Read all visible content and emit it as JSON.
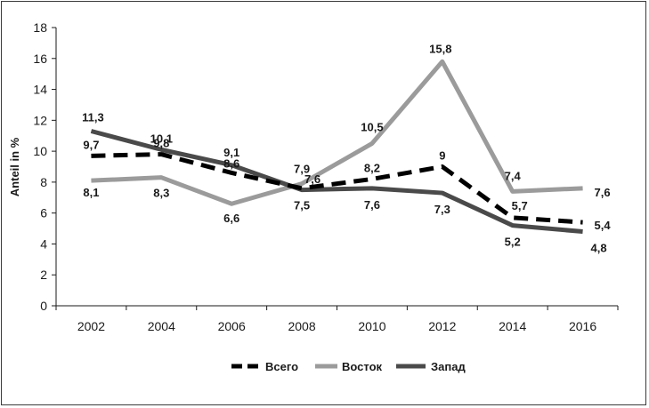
{
  "chart_data": {
    "type": "line",
    "title": "",
    "xlabel": "",
    "ylabel": "Anteil in %",
    "x": [
      "2002",
      "2004",
      "2006",
      "2008",
      "2010",
      "2012",
      "2014",
      "2016"
    ],
    "ylim": [
      0,
      18
    ],
    "yticks": [
      "0",
      "2",
      "4",
      "6",
      "8",
      "10",
      "12",
      "14",
      "16",
      "18"
    ],
    "grid": false,
    "legend_position": "bottom",
    "series": [
      {
        "name": "Всего",
        "values": [
          9.7,
          9.8,
          8.6,
          7.6,
          8.2,
          9,
          5.7,
          5.4
        ],
        "labels": [
          "9,7",
          "9,8",
          "8,6",
          "7,6",
          "8,2",
          "9",
          "5,7",
          "5,4"
        ],
        "color": "#000000",
        "style": "dashed"
      },
      {
        "name": "Восток",
        "values": [
          8.1,
          8.3,
          6.6,
          7.9,
          10.5,
          15.8,
          7.4,
          7.6
        ],
        "labels": [
          "8,1",
          "8,3",
          "6,6",
          "7,9",
          "10,5",
          "15,8",
          "7,4",
          "7,6"
        ],
        "color": "#9b9b9b",
        "style": "solid"
      },
      {
        "name": "Запад",
        "values": [
          11.3,
          10.1,
          9.1,
          7.5,
          7.6,
          7.3,
          5.2,
          4.8
        ],
        "labels": [
          "11,3",
          "10,1",
          "9,1",
          "7,5",
          "7,6",
          "7,3",
          "5,2",
          "4,8"
        ],
        "color": "#4a4a4a",
        "style": "solid"
      }
    ]
  }
}
